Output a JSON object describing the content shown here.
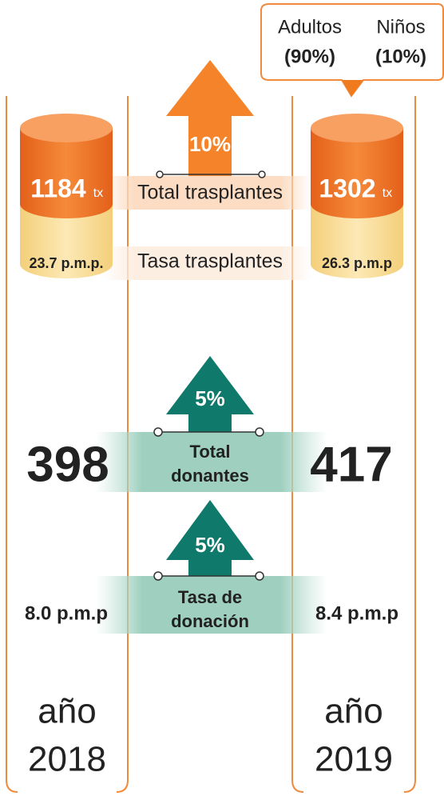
{
  "callout": {
    "adults_label": "Adultos",
    "adults_share": "(90%)",
    "children_label": "Niños",
    "children_share": "(10%)"
  },
  "transplants": {
    "change": "10%",
    "left_total": "1184",
    "left_unit": "tx",
    "right_total": "1302",
    "right_unit": "tx",
    "total_label": "Total trasplantes",
    "left_rate": "23.7 p.m.p.",
    "rate_label": "Tasa trasplantes",
    "right_rate": "26.3 p.m.p"
  },
  "donors": {
    "change": "5%",
    "left_total": "398",
    "total_label_1": "Total",
    "total_label_2": "donantes",
    "right_total": "417"
  },
  "donation_rate": {
    "change": "5%",
    "left_rate": "8.0 p.m.p",
    "label_1": "Tasa de",
    "label_2": "donación",
    "right_rate": "8.4 p.m.p"
  },
  "years": {
    "left_word": "año",
    "left_year": "2018",
    "right_word": "año",
    "right_year": "2019"
  }
}
